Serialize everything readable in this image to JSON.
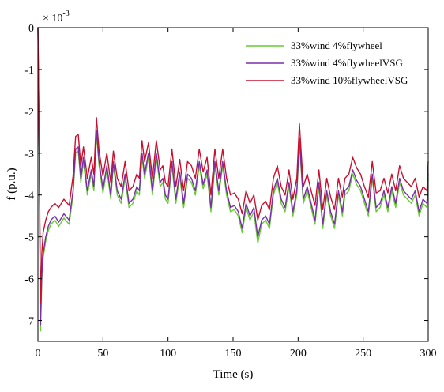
{
  "chart_data": {
    "type": "line",
    "title": "",
    "xlabel": "Time (s)",
    "ylabel": "f (p.u.)",
    "exponent_label": "× 10",
    "exponent_power": "-3",
    "xlim": [
      0,
      300
    ],
    "ylim": [
      -7.5,
      0
    ],
    "x_ticks": [
      0,
      50,
      100,
      150,
      200,
      250,
      300
    ],
    "y_ticks": [
      0,
      -1,
      -2,
      -3,
      -4,
      -5,
      -6,
      -7
    ],
    "legend_position": "top-right",
    "grid": false,
    "x": [
      0,
      1,
      2,
      3,
      4,
      6,
      8,
      10,
      13,
      16,
      20,
      24,
      27,
      29,
      31,
      33,
      35,
      38,
      41,
      43,
      45,
      47,
      50,
      53,
      56,
      58,
      61,
      64,
      67,
      70,
      73,
      76,
      78,
      80,
      82,
      85,
      88,
      91,
      94,
      96,
      98,
      100,
      103,
      106,
      109,
      112,
      115,
      118,
      121,
      124,
      127,
      130,
      133,
      136,
      139,
      142,
      145,
      148,
      151,
      154,
      157,
      160,
      163,
      166,
      169,
      172,
      175,
      178,
      181,
      184,
      187,
      190,
      193,
      196,
      199,
      201,
      204,
      207,
      210,
      213,
      216,
      219,
      222,
      225,
      228,
      231,
      234,
      236,
      239,
      242,
      245,
      248,
      251,
      254,
      257,
      260,
      263,
      266,
      269,
      272,
      275,
      278,
      281,
      284,
      287,
      290,
      293,
      296,
      299,
      300
    ],
    "series": [
      {
        "name": "33%wind  4%flywheel",
        "color": "#66cc33",
        "values": [
          0,
          -3.0,
          -7.25,
          -6.0,
          -5.5,
          -5.1,
          -4.85,
          -4.7,
          -4.6,
          -4.75,
          -4.55,
          -4.7,
          -4.0,
          -3.0,
          -2.95,
          -3.7,
          -3.2,
          -4.0,
          -3.5,
          -3.9,
          -2.55,
          -3.3,
          -3.95,
          -3.4,
          -4.1,
          -3.3,
          -4.0,
          -4.2,
          -3.6,
          -4.3,
          -4.2,
          -3.9,
          -4.0,
          -3.1,
          -3.6,
          -3.1,
          -4.0,
          -3.1,
          -3.8,
          -3.7,
          -4.1,
          -4.2,
          -3.3,
          -4.2,
          -3.55,
          -4.3,
          -3.6,
          -3.7,
          -4.0,
          -3.3,
          -3.85,
          -3.5,
          -4.4,
          -3.3,
          -4.0,
          -3.3,
          -4.0,
          -4.4,
          -4.35,
          -4.5,
          -4.9,
          -4.3,
          -4.6,
          -4.4,
          -5.15,
          -4.7,
          -4.6,
          -4.8,
          -4.0,
          -3.7,
          -4.2,
          -4.4,
          -3.8,
          -4.5,
          -4.0,
          -2.75,
          -4.2,
          -3.9,
          -4.3,
          -4.7,
          -3.8,
          -4.8,
          -4.0,
          -4.5,
          -4.8,
          -4.0,
          -4.5,
          -4.0,
          -3.9,
          -3.5,
          -3.75,
          -3.9,
          -4.2,
          -4.5,
          -3.6,
          -4.4,
          -4.3,
          -4.0,
          -4.4,
          -3.9,
          -4.3,
          -3.7,
          -4.0,
          -4.1,
          -4.2,
          -4.0,
          -4.5,
          -4.2,
          -4.3,
          -3.6
        ]
      },
      {
        "name": "33%wind  4%flywheelVSG",
        "color": "#7a2fa8",
        "values": [
          0,
          -3.0,
          -7.1,
          -5.9,
          -5.4,
          -5.0,
          -4.75,
          -4.6,
          -4.5,
          -4.65,
          -4.45,
          -4.6,
          -3.9,
          -2.9,
          -2.85,
          -3.6,
          -3.1,
          -3.9,
          -3.4,
          -3.8,
          -2.45,
          -3.2,
          -3.85,
          -3.3,
          -4.0,
          -3.2,
          -3.9,
          -4.1,
          -3.5,
          -4.2,
          -4.1,
          -3.8,
          -3.9,
          -3.0,
          -3.5,
          -3.0,
          -3.9,
          -3.0,
          -3.7,
          -3.6,
          -4.0,
          -4.1,
          -3.2,
          -4.1,
          -3.45,
          -4.2,
          -3.5,
          -3.6,
          -3.9,
          -3.2,
          -3.75,
          -3.4,
          -4.3,
          -3.2,
          -3.9,
          -3.2,
          -3.9,
          -4.3,
          -4.25,
          -4.4,
          -4.8,
          -4.2,
          -4.5,
          -4.3,
          -5.0,
          -4.6,
          -4.5,
          -4.7,
          -3.9,
          -3.6,
          -4.1,
          -4.3,
          -3.7,
          -4.4,
          -3.9,
          -2.65,
          -4.1,
          -3.8,
          -4.2,
          -4.6,
          -3.7,
          -4.7,
          -3.9,
          -4.4,
          -4.7,
          -3.9,
          -4.4,
          -3.9,
          -3.8,
          -3.4,
          -3.65,
          -3.8,
          -4.1,
          -4.4,
          -3.5,
          -4.3,
          -4.2,
          -3.9,
          -4.3,
          -3.8,
          -4.2,
          -3.6,
          -3.9,
          -4.0,
          -4.1,
          -3.9,
          -4.4,
          -4.1,
          -4.2,
          -3.5
        ]
      },
      {
        "name": "33%wind  10%flywheelVSG",
        "color": "#c8102e",
        "values": [
          0,
          -2.8,
          -6.6,
          -5.4,
          -4.9,
          -4.6,
          -4.4,
          -4.3,
          -4.2,
          -4.3,
          -4.1,
          -4.25,
          -3.55,
          -2.6,
          -2.55,
          -3.3,
          -2.85,
          -3.6,
          -3.1,
          -3.5,
          -2.15,
          -2.95,
          -3.55,
          -3.0,
          -3.7,
          -2.95,
          -3.6,
          -3.8,
          -3.2,
          -3.9,
          -3.8,
          -3.5,
          -3.6,
          -2.7,
          -3.2,
          -2.75,
          -3.6,
          -2.7,
          -3.4,
          -3.3,
          -3.7,
          -3.8,
          -2.9,
          -3.8,
          -3.15,
          -3.9,
          -3.2,
          -3.3,
          -3.6,
          -2.9,
          -3.45,
          -3.1,
          -4.0,
          -2.9,
          -3.6,
          -2.9,
          -3.6,
          -4.0,
          -3.95,
          -4.1,
          -4.45,
          -3.9,
          -4.2,
          -4.0,
          -4.6,
          -4.25,
          -4.15,
          -4.35,
          -3.6,
          -3.3,
          -3.8,
          -4.0,
          -3.4,
          -4.1,
          -3.6,
          -2.3,
          -3.8,
          -3.5,
          -3.9,
          -4.25,
          -3.4,
          -4.35,
          -3.6,
          -4.05,
          -4.35,
          -3.6,
          -4.05,
          -3.6,
          -3.5,
          -3.1,
          -3.35,
          -3.5,
          -3.8,
          -4.05,
          -3.2,
          -3.95,
          -3.9,
          -3.6,
          -3.95,
          -3.5,
          -3.9,
          -3.3,
          -3.6,
          -3.7,
          -3.8,
          -3.6,
          -4.05,
          -3.8,
          -3.9,
          -3.2
        ]
      }
    ]
  }
}
